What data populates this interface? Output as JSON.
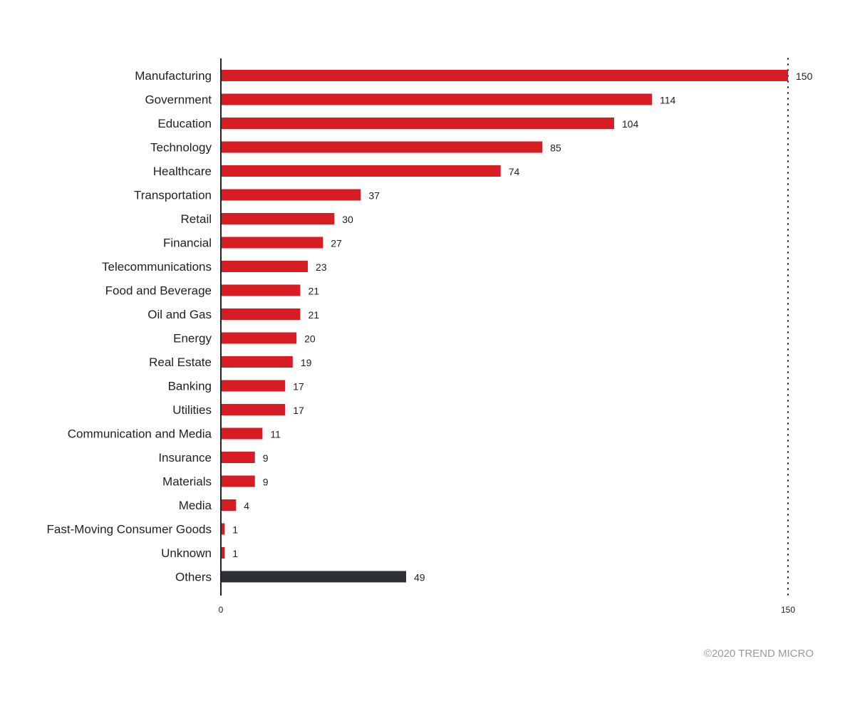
{
  "chart_data": {
    "type": "bar",
    "orientation": "horizontal",
    "categories": [
      "Manufacturing",
      "Government",
      "Education",
      "Technology",
      "Healthcare",
      "Transportation",
      "Retail",
      "Financial",
      "Telecommunications",
      "Food and Beverage",
      "Oil and Gas",
      "Energy",
      "Real Estate",
      "Banking",
      "Utilities",
      "Communication and Media",
      "Insurance",
      "Materials",
      "Media",
      "Fast-Moving Consumer Goods",
      "Unknown",
      "Others"
    ],
    "values": [
      150,
      114,
      104,
      85,
      74,
      37,
      30,
      27,
      23,
      21,
      21,
      20,
      19,
      17,
      17,
      11,
      9,
      9,
      4,
      1,
      1,
      49
    ],
    "xlim": [
      0,
      150
    ],
    "xticks": [
      "0",
      "150"
    ],
    "reference_line": 150,
    "colors": {
      "primary": "#d71c24",
      "others": "#2d3136",
      "axis": "#222222"
    },
    "grid": false
  },
  "footer": {
    "credit": "©2020 TREND MICRO"
  }
}
